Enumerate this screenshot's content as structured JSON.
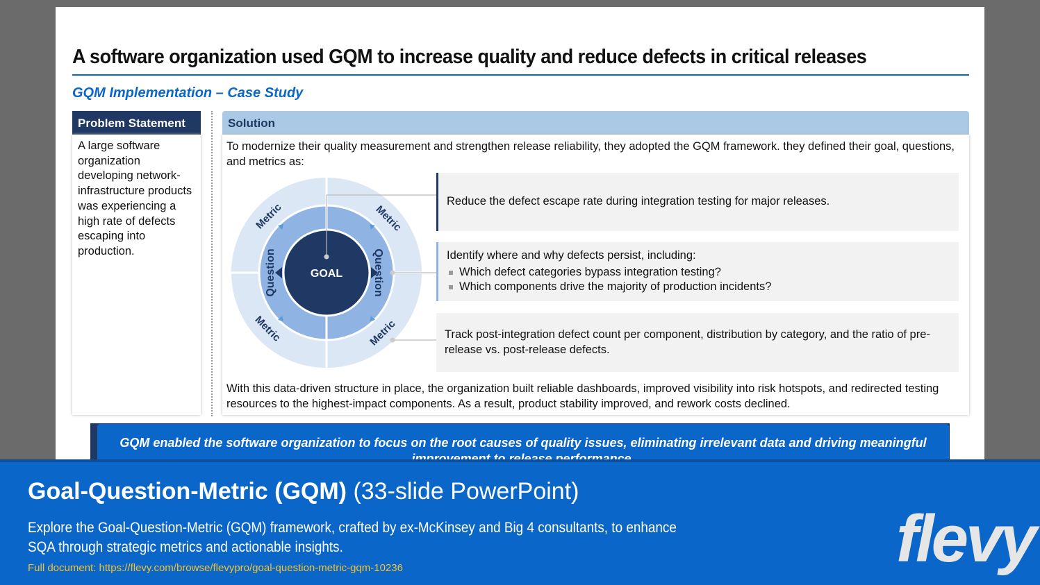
{
  "slide": {
    "title": "A software organization used GQM to increase quality and reduce defects in critical releases",
    "subtitle": "GQM Implementation – Case Study",
    "problem": {
      "header": "Problem Statement",
      "body": "A large software organization developing network-infrastructure products was experiencing a high rate of defects escaping into production."
    },
    "solution": {
      "header": "Solution",
      "intro": "To modernize their quality measurement and strengthen release reliability, they adopted the GQM framework.  they defined their goal, questions, and metrics as:",
      "diagram": {
        "goal": "GOAL",
        "question": "Question",
        "metric": "Metric"
      },
      "goal_text": "Reduce the defect escape rate during integration testing for major releases.",
      "questions": {
        "lead": "Identify where and why defects persist, including:",
        "items": [
          "Which defect categories bypass integration testing?",
          "Which components drive the majority of production incidents?"
        ]
      },
      "metrics_text": "Track post-integration defect count per component, distribution by category, and the ratio of pre-release vs. post-release defects.",
      "closing": "With this data-driven structure in place, the organization built reliable dashboards, improved visibility into risk hotspots, and redirected testing resources to the highest-impact components. As a result, product stability improved, and rework costs declined."
    },
    "callout": "GQM enabled the software organization to focus on the root causes of quality issues, eliminating irrelevant data and driving meaningful improvement to release performance."
  },
  "banner": {
    "title": "Goal-Question-Metric (GQM)",
    "format": "(33-slide PowerPoint)",
    "description": "Explore the Goal-Question-Metric (GQM) framework, crafted by ex-McKinsey and Big 4 consultants, to enhance SQA through strategic metrics and actionable insights.",
    "url": "Full document: https://flevy.com/browse/flevypro/goal-question-metric-gqm-10236",
    "logo": "flevy"
  }
}
